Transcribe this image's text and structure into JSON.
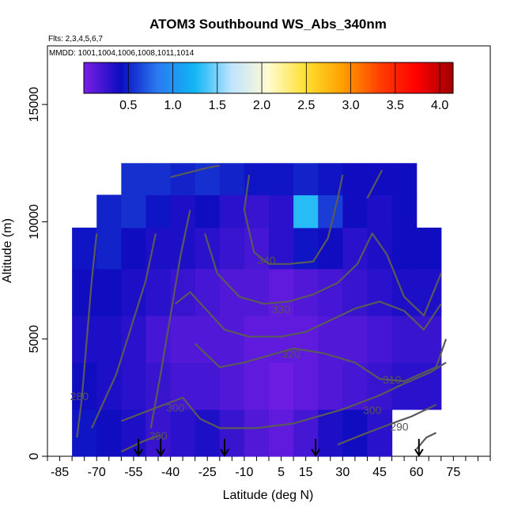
{
  "chart_data": {
    "type": "heatmap",
    "title": "ATOM3 Southbound WS_Abs_340nm",
    "flights_note": "Flts: 2,3,4,5,6,7",
    "dates_note": "MMDD: 1001,1004,1006,1008,1011,1014",
    "xlabel": "Latitude (deg N)",
    "ylabel": "Altitude (m)",
    "xlim": [
      -90,
      90
    ],
    "ylim": [
      0,
      17500
    ],
    "x_ticks": [
      -85,
      -70,
      -55,
      -40,
      -25,
      -10,
      5,
      15,
      30,
      45,
      60,
      75
    ],
    "x_minor_step": 5,
    "y_ticks": [
      0,
      5000,
      10000,
      15000
    ],
    "colorbar": {
      "ticks": [
        0.5,
        1.0,
        1.5,
        2.0,
        2.5,
        3.0,
        3.5,
        4.0
      ],
      "tick_labels": [
        "0.5",
        "1.0",
        "1.5",
        "2.0",
        "2.5",
        "3.0",
        "3.5",
        "4.0"
      ],
      "range": [
        0,
        4.15
      ],
      "colors": [
        "#7a1fe6",
        "#0c0cc0",
        "#2a7af0",
        "#10b6f4",
        "#bfe4ff",
        "#fffbd0",
        "#ffe030",
        "#ffa000",
        "#ff4000",
        "#ff0000",
        "#a00000"
      ]
    },
    "field": {
      "x": [
        -75,
        -65,
        -55,
        -45,
        -35,
        -25,
        -15,
        -5,
        5,
        15,
        25,
        35,
        45,
        55,
        65
      ],
      "y": [
        1000,
        3000,
        5000,
        7000,
        9000,
        10500,
        11800
      ],
      "values": [
        [
          0.45,
          0.4,
          0.35,
          0.25,
          0.3,
          0.35,
          0.25,
          0.15,
          0.1,
          0.2,
          0.35,
          0.4,
          0.3,
          null,
          null
        ],
        [
          0.4,
          0.35,
          0.3,
          0.25,
          0.2,
          0.2,
          0.15,
          0.1,
          0.05,
          0.1,
          0.15,
          0.2,
          0.25,
          0.3,
          0.3
        ],
        [
          0.35,
          0.35,
          0.3,
          0.2,
          0.15,
          0.15,
          0.15,
          0.1,
          0.1,
          0.1,
          0.15,
          0.15,
          0.2,
          0.25,
          0.25
        ],
        [
          0.4,
          0.4,
          0.35,
          0.3,
          0.25,
          0.2,
          0.15,
          0.15,
          0.1,
          0.15,
          0.2,
          0.25,
          0.3,
          0.35,
          0.35
        ],
        [
          0.45,
          0.5,
          0.4,
          0.35,
          0.35,
          0.3,
          0.25,
          0.2,
          0.3,
          0.45,
          0.4,
          0.3,
          0.35,
          0.4,
          0.4
        ],
        [
          null,
          0.5,
          0.55,
          0.45,
          0.35,
          0.4,
          0.3,
          0.25,
          0.3,
          1.3,
          0.6,
          0.4,
          0.35,
          0.4,
          null
        ],
        [
          null,
          null,
          0.55,
          0.55,
          0.5,
          0.55,
          0.5,
          0.45,
          0.45,
          0.5,
          0.45,
          0.4,
          0.4,
          0.4,
          null
        ]
      ]
    },
    "contours": [
      {
        "label": "280",
        "points": [
          [
            -78,
            800
          ],
          [
            -76,
            2500
          ],
          [
            -74,
            5000
          ],
          [
            -72,
            7500
          ],
          [
            -70,
            9500
          ]
        ]
      },
      {
        "label": "290",
        "points": [
          [
            -60,
            200
          ],
          [
            -52,
            600
          ],
          [
            -47,
            800
          ],
          [
            -44,
            900
          ]
        ]
      },
      {
        "label": "290",
        "points": [
          [
            28,
            500
          ],
          [
            40,
            1000
          ],
          [
            50,
            1400
          ],
          [
            58,
            1700
          ],
          [
            68,
            2200
          ]
        ]
      },
      {
        "label": "300",
        "points": [
          [
            -72,
            1200
          ],
          [
            -62,
            3500
          ],
          [
            -56,
            5500
          ],
          [
            -50,
            7500
          ],
          [
            -46,
            9500
          ]
        ]
      },
      {
        "label": "300",
        "points": [
          [
            -60,
            1500
          ],
          [
            -45,
            2100
          ],
          [
            -35,
            2500
          ],
          [
            -28,
            1600
          ],
          [
            -20,
            1200
          ],
          [
            -5,
            1200
          ],
          [
            10,
            1400
          ],
          [
            20,
            1700
          ],
          [
            30,
            2000
          ],
          [
            45,
            2600
          ],
          [
            55,
            3100
          ],
          [
            66,
            3600
          ],
          [
            72,
            4000
          ]
        ]
      },
      {
        "label": "310",
        "points": [
          [
            -48,
            1200
          ],
          [
            -44,
            3500
          ],
          [
            -40,
            6000
          ],
          [
            -36,
            8500
          ],
          [
            -32,
            10500
          ]
        ]
      },
      {
        "label": "310",
        "points": [
          [
            -30,
            4800
          ],
          [
            -20,
            3800
          ],
          [
            -10,
            4000
          ],
          [
            0,
            4300
          ],
          [
            10,
            4600
          ],
          [
            22,
            4400
          ],
          [
            35,
            4000
          ],
          [
            45,
            3300
          ],
          [
            55,
            3200
          ],
          [
            68,
            3800
          ],
          [
            72,
            5000
          ]
        ]
      },
      {
        "label": "320",
        "points": [
          [
            -38,
            6500
          ],
          [
            -32,
            7000
          ],
          [
            -25,
            6200
          ],
          [
            -18,
            5400
          ],
          [
            -8,
            5100
          ],
          [
            5,
            5100
          ],
          [
            15,
            5300
          ],
          [
            25,
            5800
          ],
          [
            35,
            6300
          ],
          [
            45,
            6600
          ],
          [
            55,
            6200
          ],
          [
            63,
            5400
          ],
          [
            70,
            6500
          ]
        ]
      },
      {
        "label": "330",
        "points": [
          [
            -26,
            9500
          ],
          [
            -21,
            7800
          ],
          [
            -12,
            6800
          ],
          [
            -2,
            6500
          ],
          [
            8,
            6600
          ],
          [
            18,
            6900
          ],
          [
            28,
            7400
          ],
          [
            36,
            8200
          ],
          [
            42,
            9500
          ],
          [
            48,
            8600
          ],
          [
            55,
            6800
          ],
          [
            63,
            6000
          ],
          [
            70,
            7800
          ]
        ]
      },
      {
        "label": "340",
        "points": [
          [
            -8,
            12000
          ],
          [
            -10,
            10500
          ],
          [
            -6,
            8700
          ],
          [
            0,
            8200
          ],
          [
            8,
            8200
          ],
          [
            18,
            8300
          ],
          [
            24,
            9300
          ],
          [
            28,
            11000
          ],
          [
            30,
            12000
          ]
        ]
      },
      {
        "label": "",
        "points": [
          [
            -40,
            11900
          ],
          [
            -25,
            12300
          ],
          [
            -20,
            12400
          ]
        ]
      },
      {
        "label": "",
        "points": [
          [
            40,
            11000
          ],
          [
            46,
            12200
          ]
        ]
      },
      {
        "label": "",
        "points": [
          [
            60,
            300
          ],
          [
            64,
            800
          ],
          [
            68,
            1000
          ]
        ]
      }
    ],
    "contour_labels": [
      {
        "text": "280",
        "x": -77,
        "y": 2400
      },
      {
        "text": "290",
        "x": -45,
        "y": 700
      },
      {
        "text": "300",
        "x": -38,
        "y": 1900
      },
      {
        "text": "320",
        "x": 9,
        "y": 4200
      },
      {
        "text": "330",
        "x": 5,
        "y": 6100
      },
      {
        "text": "340",
        "x": -1,
        "y": 8200
      },
      {
        "text": "310",
        "x": 50,
        "y": 3100
      },
      {
        "text": "300",
        "x": 42,
        "y": 1800
      },
      {
        "text": "290",
        "x": 53,
        "y": 1100
      }
    ],
    "markers_lat": [
      -53,
      -44,
      -18,
      19,
      61
    ]
  }
}
